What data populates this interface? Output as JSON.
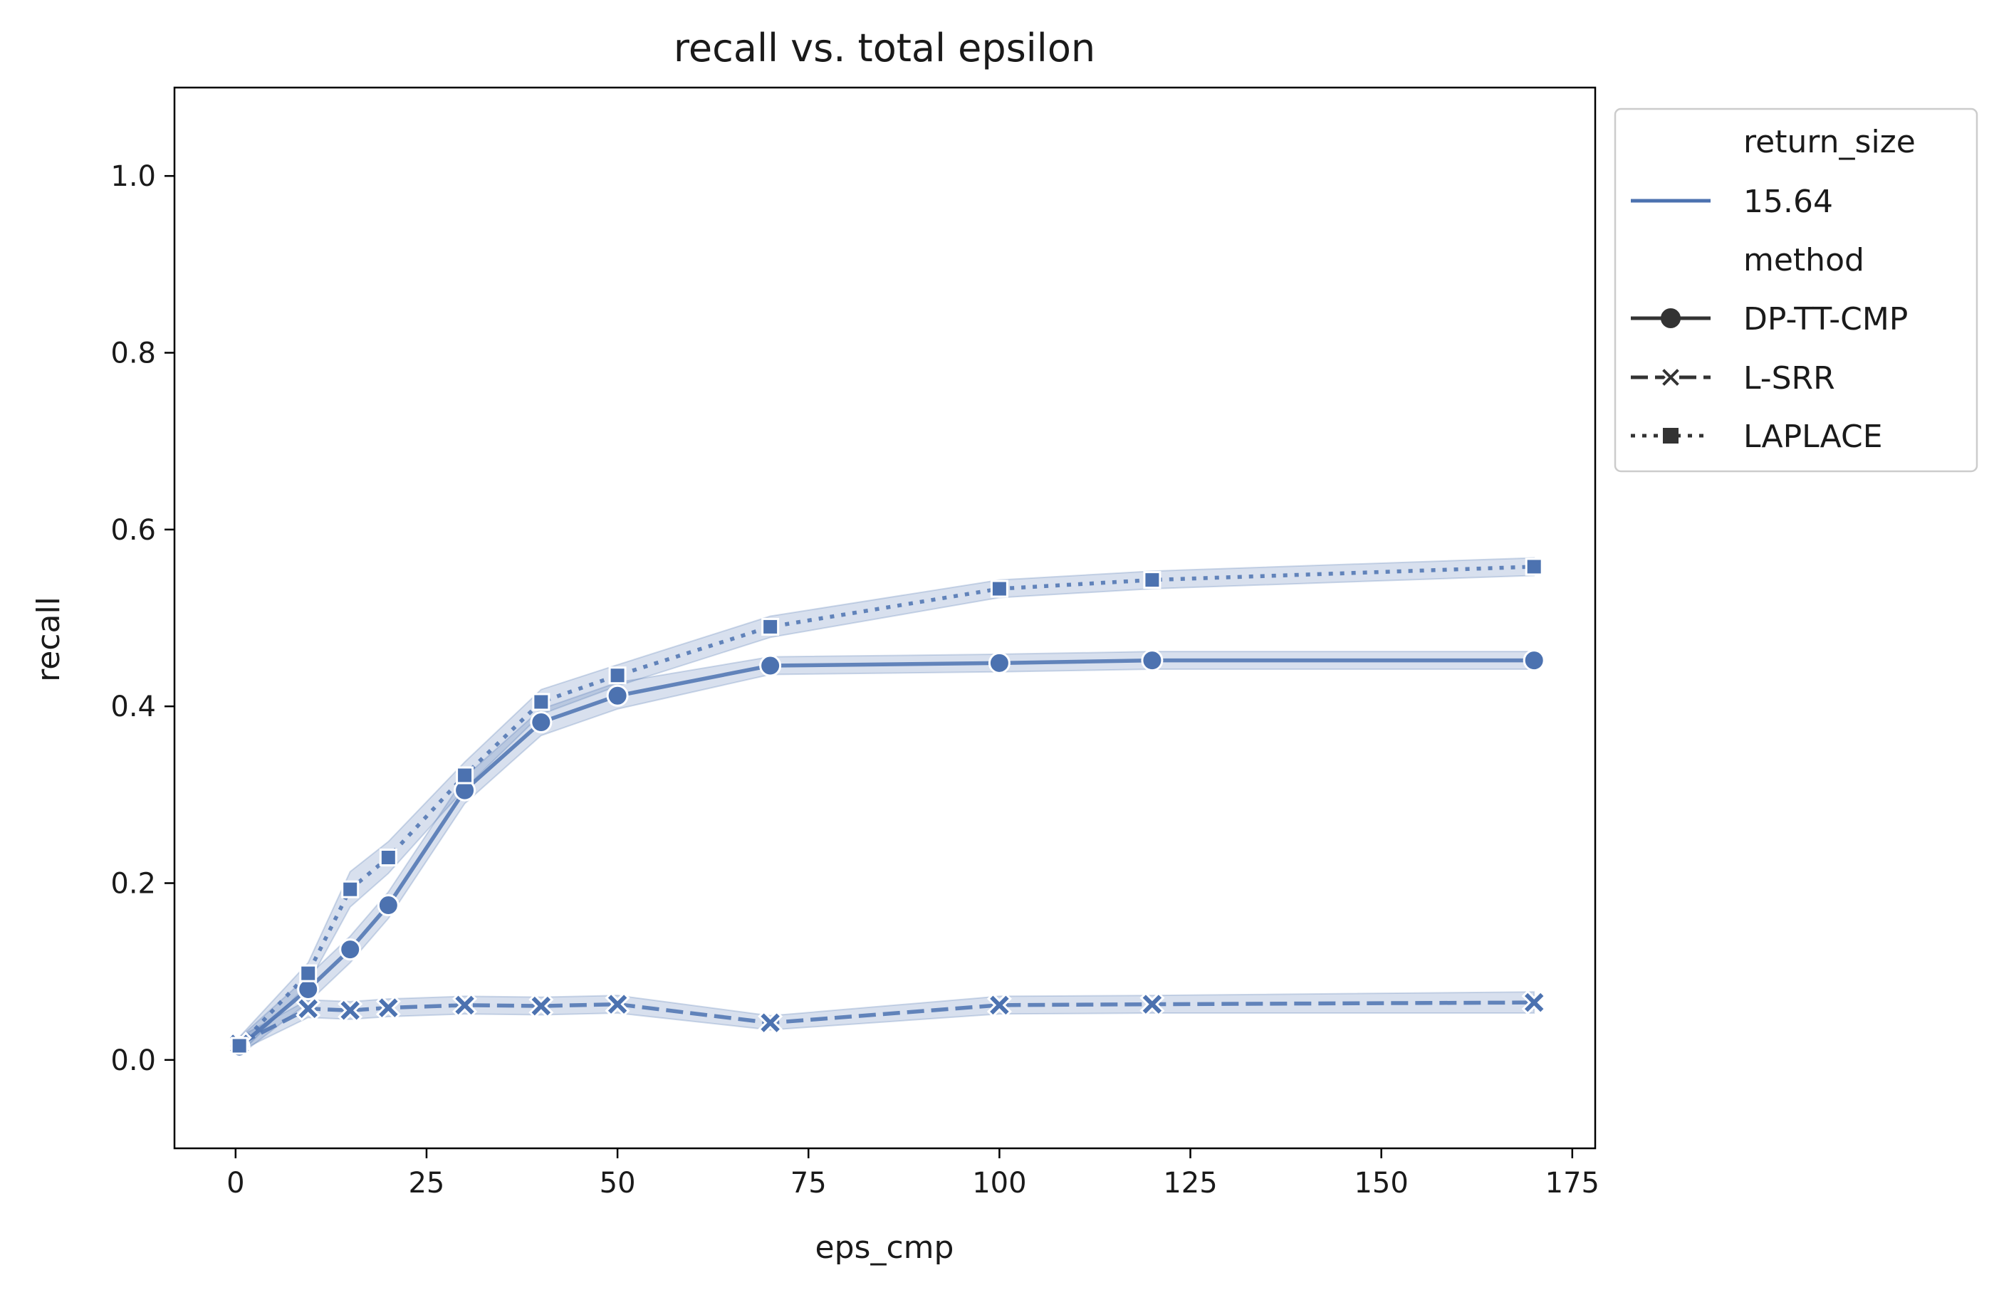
{
  "chart_data": {
    "type": "line",
    "title": "recall vs. total epsilon",
    "xlabel": "eps_cmp",
    "ylabel": "recall",
    "xlim": [
      -8,
      178
    ],
    "ylim": [
      -0.1,
      1.1
    ],
    "xticks": [
      0,
      25,
      50,
      75,
      100,
      125,
      150,
      175
    ],
    "yticks": [
      0.0,
      0.2,
      0.4,
      0.6,
      0.8,
      1.0
    ],
    "xtick_labels": [
      "0",
      "25",
      "50",
      "75",
      "100",
      "125",
      "150",
      "175"
    ],
    "ytick_labels": [
      "0.0",
      "0.2",
      "0.4",
      "0.6",
      "0.8",
      "1.0"
    ],
    "grid": false,
    "legend": {
      "placement": "outside-right",
      "hue_title": "return_size",
      "hue_entries": [
        {
          "label": "15.64",
          "color": "#4C72B0"
        }
      ],
      "style_title": "method",
      "style_entries": [
        {
          "label": "DP-TT-CMP",
          "dash": "solid",
          "marker": "circle"
        },
        {
          "label": "L-SRR",
          "dash": "dashed",
          "marker": "x"
        },
        {
          "label": "LAPLACE",
          "dash": "dotted",
          "marker": "square"
        }
      ]
    },
    "series": [
      {
        "name": "DP-TT-CMP",
        "marker": "circle",
        "dash": "solid",
        "x": [
          0.5,
          9.5,
          15,
          20,
          30,
          40,
          50,
          70,
          100,
          120,
          170
        ],
        "y": [
          0.015,
          0.08,
          0.125,
          0.175,
          0.305,
          0.382,
          0.412,
          0.446,
          0.449,
          0.452,
          0.452
        ],
        "band": [
          0.01,
          0.015,
          0.015,
          0.015,
          0.015,
          0.015,
          0.015,
          0.01,
          0.01,
          0.01,
          0.01
        ]
      },
      {
        "name": "L-SRR",
        "marker": "x",
        "dash": "dashed",
        "x": [
          0.5,
          9.5,
          15,
          20,
          30,
          40,
          50,
          70,
          100,
          120,
          170
        ],
        "y": [
          0.018,
          0.058,
          0.056,
          0.059,
          0.062,
          0.061,
          0.063,
          0.042,
          0.062,
          0.063,
          0.065
        ],
        "band": [
          0.008,
          0.01,
          0.01,
          0.01,
          0.01,
          0.01,
          0.01,
          0.008,
          0.01,
          0.01,
          0.012
        ]
      },
      {
        "name": "LAPLACE",
        "marker": "square",
        "dash": "dotted",
        "x": [
          0.5,
          9.5,
          15,
          20,
          30,
          40,
          50,
          70,
          100,
          120,
          170
        ],
        "y": [
          0.016,
          0.098,
          0.193,
          0.229,
          0.322,
          0.405,
          0.435,
          0.49,
          0.533,
          0.543,
          0.558
        ],
        "band": [
          0.01,
          0.012,
          0.02,
          0.018,
          0.015,
          0.014,
          0.012,
          0.012,
          0.01,
          0.01,
          0.01
        ]
      }
    ],
    "colors": {
      "line": "#4C72B0",
      "band": "#4C72B0",
      "legend_marker": "#333333"
    }
  }
}
